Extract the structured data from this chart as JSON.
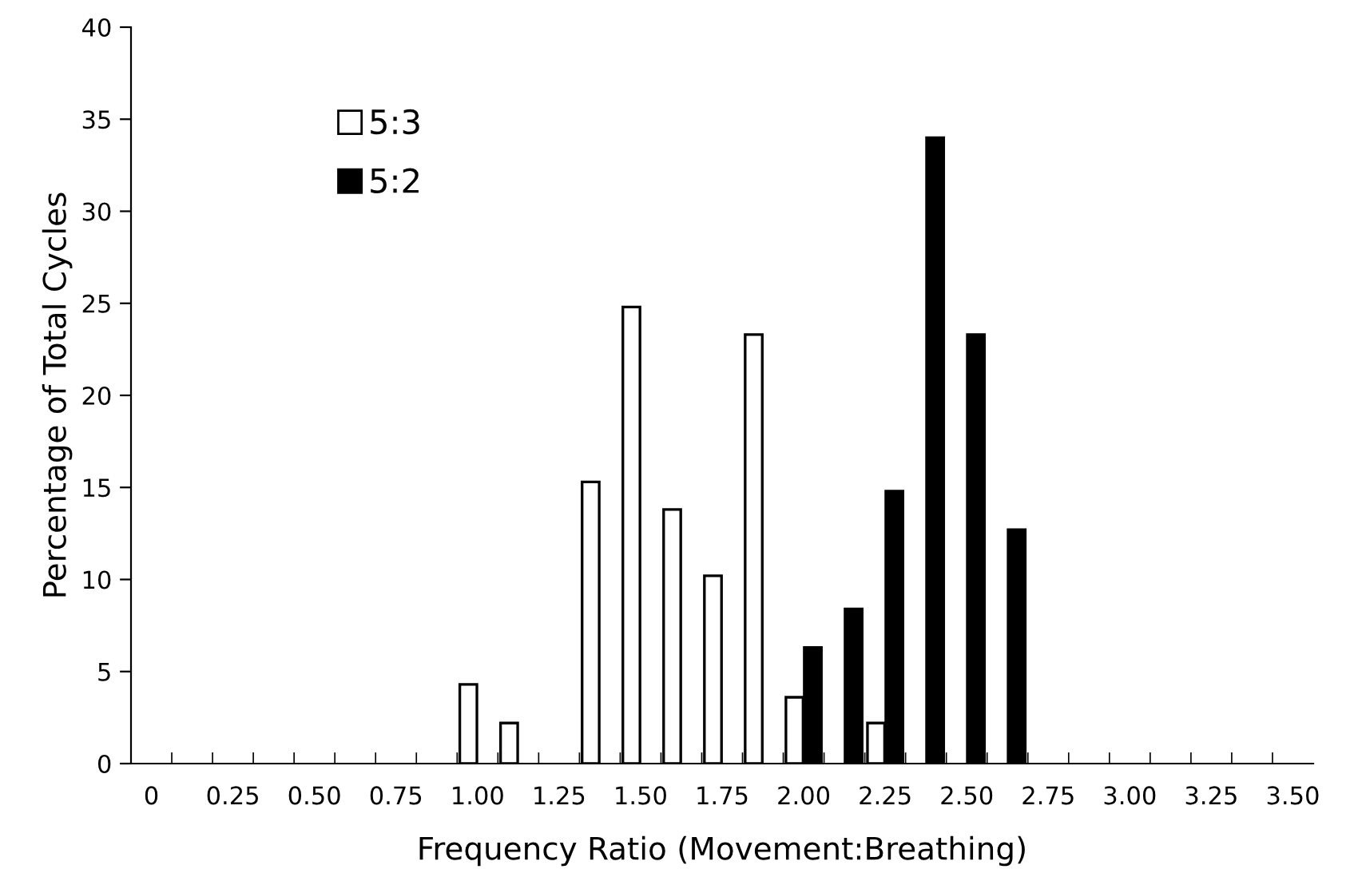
{
  "chart_data": {
    "type": "bar",
    "xlabel": "Frequency Ratio (Movement:Breathing)",
    "ylabel": "Percentage of Total Cycles",
    "categories": [
      "0",
      null,
      "0.25",
      null,
      "0.50",
      null,
      "0.75",
      null,
      "1.00",
      null,
      "1.25",
      null,
      "1.50",
      null,
      "1.75",
      null,
      "2.00",
      null,
      "2.25",
      null,
      "2.50",
      null,
      "2.75",
      null,
      "3.00",
      null,
      "3.25",
      null,
      "3.50"
    ],
    "series": [
      {
        "name": "5:3",
        "color": "#ffffff",
        "values": [
          null,
          null,
          null,
          null,
          null,
          null,
          null,
          null,
          4.3,
          2.2,
          null,
          15.3,
          24.8,
          13.8,
          10.2,
          23.3,
          3.6,
          null,
          2.2,
          null,
          null,
          null,
          null,
          null,
          null,
          null,
          null,
          null,
          null
        ]
      },
      {
        "name": "5:2",
        "color": "#000000",
        "values": [
          null,
          null,
          null,
          null,
          null,
          null,
          null,
          null,
          null,
          null,
          null,
          null,
          null,
          null,
          null,
          null,
          6.3,
          8.4,
          14.8,
          34.0,
          23.3,
          12.7,
          null,
          null,
          null,
          null,
          null,
          null,
          null
        ]
      }
    ],
    "ylim": [
      0,
      40
    ],
    "yticks": [
      0,
      5,
      10,
      15,
      20,
      25,
      30,
      35,
      40
    ],
    "grid": false,
    "legend": "top left"
  }
}
